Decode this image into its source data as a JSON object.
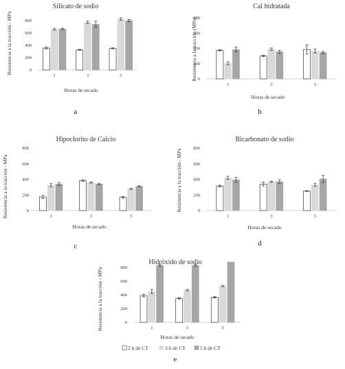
{
  "colors": {
    "h2": "#ffffff",
    "h3": "#d9d9d9",
    "h5": "#a6a6a6",
    "edge": "#333333",
    "axis": "#bfbfbf"
  },
  "legend": [
    "2 h de CT",
    "3 h de CT",
    "5 h de CT"
  ],
  "chart_data": [
    {
      "type": "bar",
      "letter": "a",
      "title": "Silicato de sodio",
      "xlabel": "Horas de secado",
      "ylabel": "Resistencia a la tracción - MPa",
      "categories": [
        "1",
        "3",
        "5"
      ],
      "ylim": [
        0,
        800
      ],
      "yticks": [
        0,
        200,
        400,
        600,
        800
      ],
      "series": [
        {
          "name": "2 h de CT",
          "values": [
            355,
            325,
            350
          ],
          "errors": [
            15,
            8,
            8
          ]
        },
        {
          "name": "3 h de CT",
          "values": [
            660,
            770,
            825
          ],
          "errors": [
            15,
            20,
            20
          ]
        },
        {
          "name": "5 h de CT",
          "values": [
            665,
            740,
            800
          ],
          "errors": [
            12,
            50,
            20
          ]
        }
      ]
    },
    {
      "type": "bar",
      "letter": "b",
      "title": "Cal hidratada",
      "xlabel": "Horas de secado",
      "ylabel": "Resistencia a la tracción (MPa)",
      "categories": [
        "1",
        "3",
        "5"
      ],
      "ylim": [
        0,
        800
      ],
      "yticks": [
        0,
        200,
        400,
        600,
        800
      ],
      "series": [
        {
          "name": "2 h de CT",
          "values": [
            375,
            300,
            385
          ],
          "errors": [
            8,
            10,
            60
          ]
        },
        {
          "name": "3 h de CT",
          "values": [
            205,
            390,
            365
          ],
          "errors": [
            20,
            15,
            25
          ]
        },
        {
          "name": "5 h de CT",
          "values": [
            385,
            355,
            345
          ],
          "errors": [
            30,
            20,
            15
          ]
        }
      ]
    },
    {
      "type": "bar",
      "letter": "c",
      "title": "Hipoclorito de Calcio",
      "xlabel": "Horas de secado",
      "ylabel": "Resistencia a la tracción - MPa",
      "categories": [
        "1",
        "3",
        "5"
      ],
      "ylim": [
        0,
        800
      ],
      "yticks": [
        0,
        200,
        400,
        600,
        800
      ],
      "series": [
        {
          "name": "2 h de CT",
          "values": [
            175,
            385,
            170
          ],
          "errors": [
            20,
            10,
            12
          ]
        },
        {
          "name": "3 h de CT",
          "values": [
            325,
            360,
            280
          ],
          "errors": [
            20,
            8,
            8
          ]
        },
        {
          "name": "5 h de CT",
          "values": [
            340,
            340,
            310
          ],
          "errors": [
            20,
            10,
            8
          ]
        }
      ]
    },
    {
      "type": "bar",
      "letter": "d",
      "title": "Bicarbonato de sodio",
      "xlabel": "Horas de secado",
      "ylabel": "Resistencia a la tracción - MPa",
      "categories": [
        "1",
        "3",
        "5"
      ],
      "ylim": [
        0,
        800
      ],
      "yticks": [
        0,
        200,
        400,
        600,
        800
      ],
      "series": [
        {
          "name": "2 h de CT",
          "values": [
            315,
            340,
            250
          ],
          "errors": [
            10,
            25,
            5
          ]
        },
        {
          "name": "3 h de CT",
          "values": [
            420,
            370,
            330
          ],
          "errors": [
            20,
            8,
            20
          ]
        },
        {
          "name": "5 h de CT",
          "values": [
            395,
            370,
            405
          ],
          "errors": [
            30,
            25,
            45
          ]
        }
      ]
    },
    {
      "type": "bar",
      "letter": "e",
      "title": "Hidróxido de sodio",
      "xlabel": "Horas de secado",
      "ylabel": "Resistencia a la tracción - MPa",
      "categories": [
        "1",
        "3",
        "5"
      ],
      "ylim": [
        0,
        800
      ],
      "yticks": [
        0,
        200,
        400,
        600,
        800
      ],
      "series": [
        {
          "name": "2 h de CT",
          "values": [
            390,
            350,
            365
          ],
          "errors": [
            20,
            10,
            10
          ]
        },
        {
          "name": "3 h de CT",
          "values": [
            450,
            470,
            530
          ],
          "errors": [
            30,
            10,
            10
          ]
        },
        {
          "name": "5 h de CT",
          "values": [
            830,
            830,
            880
          ],
          "errors": [
            15,
            12,
            0
          ]
        }
      ]
    }
  ]
}
